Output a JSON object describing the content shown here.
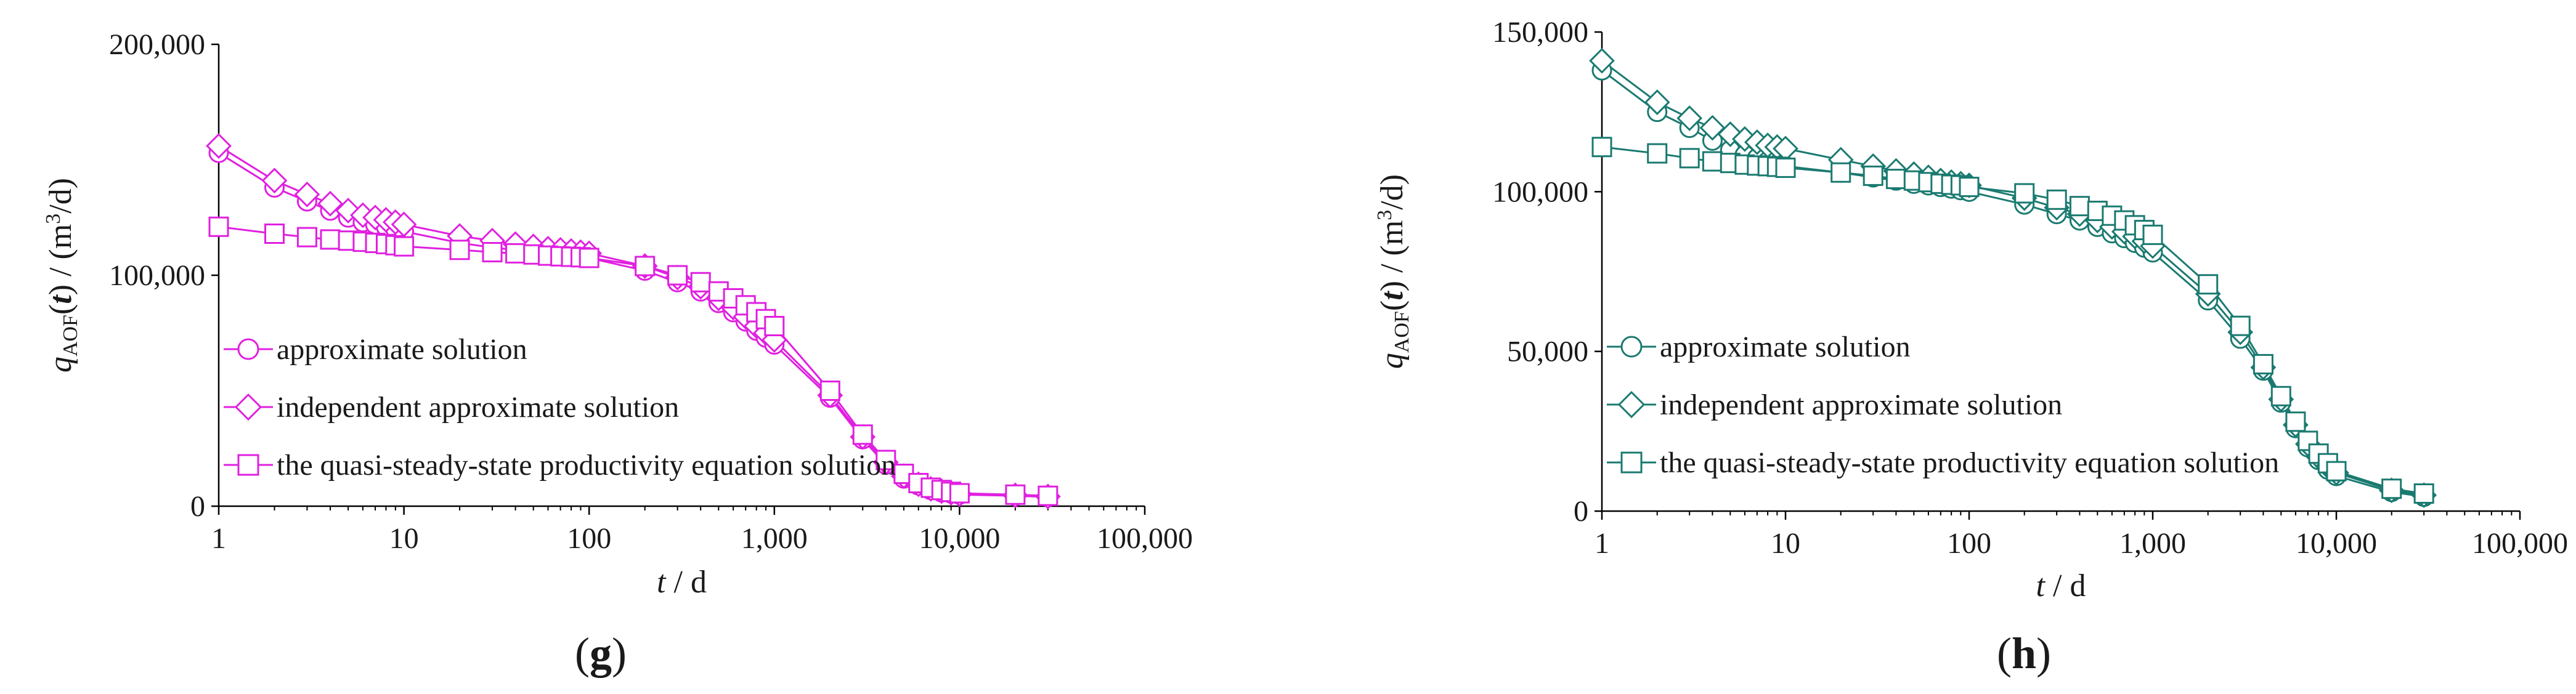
{
  "panels": [
    {
      "panel_label": "g",
      "colors": {
        "series": "#e020e0"
      },
      "chart_data": {
        "type": "line",
        "xscale": "log",
        "xlim": [
          1,
          100000
        ],
        "ylim": [
          0,
          200000
        ],
        "xticks": [
          "1",
          "10",
          "100",
          "1,000",
          "10,000",
          "100,000"
        ],
        "yticks": [
          "0",
          "100,000",
          "200,000"
        ],
        "ylabel": {
          "var": "q",
          "sub": "AOF",
          "arg": "t",
          "unit_pre": " / (m",
          "unit_sup": "3",
          "unit_post": "/d)"
        },
        "xlabel": {
          "var": "t",
          "unit": " / d"
        },
        "legend_position": "left",
        "series": [
          {
            "name": "approximate solution",
            "marker": "circle",
            "x": [
              1,
              2,
              3,
              4,
              5,
              6,
              7,
              8,
              9,
              10,
              20,
              30,
              40,
              50,
              60,
              70,
              80,
              90,
              100,
              200,
              300,
              400,
              500,
              600,
              700,
              800,
              900,
              1000,
              2000,
              3000,
              4000,
              5000,
              6000,
              7000,
              8000,
              9000,
              10000,
              20000,
              30000
            ],
            "y": [
              153000,
              138000,
              132000,
              128000,
              125000,
              123000,
              122000,
              121000,
              120000,
              119000,
              114000,
              112000,
              111000,
              110000,
              109500,
              109000,
              108500,
              108000,
              107500,
              102000,
              97000,
              93000,
              88000,
              84000,
              80000,
              76000,
              73000,
              70000,
              47000,
              29000,
              18000,
              12000,
              9000,
              7000,
              6000,
              5500,
              5000,
              4500,
              4000
            ]
          },
          {
            "name": "independent approximate solution",
            "marker": "diamond",
            "x": [
              1,
              2,
              3,
              4,
              5,
              6,
              7,
              8,
              9,
              10,
              20,
              30,
              40,
              50,
              60,
              70,
              80,
              90,
              100,
              200,
              300,
              400,
              500,
              600,
              700,
              800,
              900,
              1000,
              2000,
              3000,
              4000,
              5000,
              6000,
              7000,
              8000,
              9000,
              10000,
              20000,
              30000
            ],
            "y": [
              156000,
              141000,
              135000,
              131000,
              128000,
              126000,
              125000,
              124000,
              123000,
              122000,
              117000,
              115000,
              113500,
              112500,
              111500,
              111000,
              110500,
              110000,
              109500,
              104000,
              99000,
              95000,
              90000,
              86000,
              82000,
              78000,
              75000,
              72000,
              48000,
              30000,
              19000,
              13000,
              9500,
              7500,
              6500,
              5800,
              5200,
              4700,
              4200
            ]
          },
          {
            "name": "the quasi-steady-state productivity equation solution",
            "marker": "square",
            "x": [
              1,
              2,
              3,
              4,
              5,
              6,
              7,
              8,
              9,
              10,
              20,
              30,
              40,
              50,
              60,
              70,
              80,
              90,
              100,
              200,
              300,
              400,
              500,
              600,
              700,
              800,
              900,
              1000,
              2000,
              3000,
              4000,
              5000,
              6000,
              7000,
              8000,
              9000,
              10000,
              20000,
              30000
            ],
            "y": [
              121000,
              118000,
              116500,
              115500,
              115000,
              114500,
              114000,
              113500,
              113000,
              112500,
              111000,
              110000,
              109500,
              109000,
              108500,
              108200,
              108000,
              107800,
              107500,
              104000,
              100000,
              97000,
              93000,
              90000,
              87000,
              84000,
              81000,
              78000,
              50000,
              31000,
              20000,
              14000,
              10000,
              8000,
              7000,
              6200,
              5600,
              5000,
              4500
            ]
          }
        ]
      }
    },
    {
      "panel_label": "h",
      "colors": {
        "series": "#1a7a70"
      },
      "chart_data": {
        "type": "line",
        "xscale": "log",
        "xlim": [
          1,
          100000
        ],
        "ylim": [
          0,
          150000
        ],
        "xticks": [
          "1",
          "10",
          "100",
          "1,000",
          "10,000",
          "100,000"
        ],
        "yticks": [
          "0",
          "50,000",
          "100,000",
          "150,000"
        ],
        "ylabel": {
          "var": "q",
          "sub": "AOF",
          "arg": "t",
          "unit_pre": " / (m",
          "unit_sup": "3",
          "unit_post": "/d)"
        },
        "xlabel": {
          "var": "t",
          "unit": " / d"
        },
        "legend_position": "left",
        "series": [
          {
            "name": "approximate solution",
            "marker": "circle",
            "x": [
              1,
              2,
              3,
              4,
              5,
              6,
              7,
              8,
              9,
              10,
              20,
              30,
              40,
              50,
              60,
              70,
              80,
              90,
              100,
              200,
              300,
              400,
              500,
              600,
              700,
              800,
              900,
              1000,
              2000,
              3000,
              4000,
              5000,
              6000,
              7000,
              8000,
              9000,
              10000,
              20000,
              30000
            ],
            "y": [
              138000,
              125000,
              120000,
              116000,
              113000,
              111500,
              110500,
              109500,
              108500,
              108000,
              106000,
              104500,
              103500,
              102500,
              102000,
              101500,
              101000,
              100500,
              100000,
              96000,
              93000,
              91000,
              89000,
              87000,
              85500,
              84000,
              82500,
              81000,
              66000,
              54000,
              44000,
              34000,
              26000,
              20000,
              16000,
              13000,
              11000,
              6000,
              4500
            ]
          },
          {
            "name": "independent approximate solution",
            "marker": "diamond",
            "x": [
              1,
              2,
              3,
              4,
              5,
              6,
              7,
              8,
              9,
              10,
              20,
              30,
              40,
              50,
              60,
              70,
              80,
              90,
              100,
              200,
              300,
              400,
              500,
              600,
              700,
              800,
              900,
              1000,
              2000,
              3000,
              4000,
              5000,
              6000,
              7000,
              8000,
              9000,
              10000,
              20000,
              30000
            ],
            "y": [
              141000,
              128000,
              123000,
              120000,
              118000,
              116500,
              115500,
              114500,
              114000,
              113500,
              110000,
              108000,
              106500,
              105500,
              104500,
              103500,
              103000,
              102500,
              102000,
              98000,
              95000,
              93000,
              91000,
              89000,
              87500,
              86000,
              84500,
              83000,
              68000,
              56000,
              45000,
              35000,
              27000,
              21000,
              17000,
              14000,
              12000,
              6500,
              5000
            ]
          },
          {
            "name": "the quasi-steady-state productivity equation solution",
            "marker": "square",
            "x": [
              1,
              2,
              3,
              4,
              5,
              6,
              7,
              8,
              9,
              10,
              20,
              30,
              40,
              50,
              60,
              70,
              80,
              90,
              100,
              200,
              300,
              400,
              500,
              600,
              700,
              800,
              900,
              1000,
              2000,
              3000,
              4000,
              5000,
              6000,
              7000,
              8000,
              9000,
              10000,
              20000,
              30000
            ],
            "y": [
              114000,
              112000,
              110500,
              109500,
              109000,
              108500,
              108200,
              108000,
              107800,
              107500,
              106000,
              105000,
              104000,
              103500,
              103000,
              102500,
              102200,
              102000,
              101500,
              99500,
              97500,
              95500,
              94000,
              92500,
              91000,
              89500,
              88000,
              86500,
              71000,
              58000,
              46000,
              36000,
              28000,
              22000,
              18000,
              15000,
              12500,
              7000,
              5500
            ]
          }
        ]
      }
    }
  ]
}
